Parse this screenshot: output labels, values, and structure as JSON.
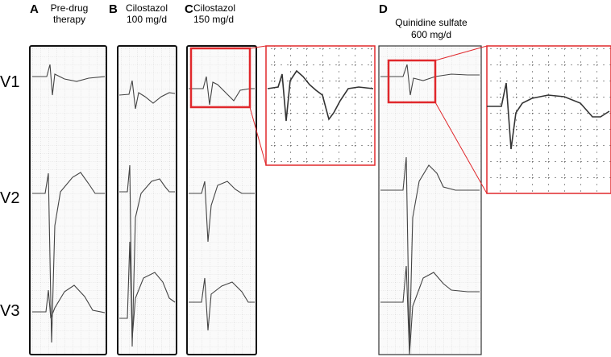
{
  "panels": [
    {
      "label": "A",
      "title": [
        "Pre-drug",
        "therapy"
      ]
    },
    {
      "label": "B",
      "title": [
        "Cilostazol",
        "100 mg/d"
      ]
    },
    {
      "label": "C",
      "title": [
        "Cilostazol",
        "150 mg/d"
      ]
    },
    {
      "label": "D",
      "title": [
        "Quinidine sulfate",
        "600 mg/d"
      ]
    }
  ],
  "leads": [
    "V1",
    "V2",
    "V3"
  ]
}
